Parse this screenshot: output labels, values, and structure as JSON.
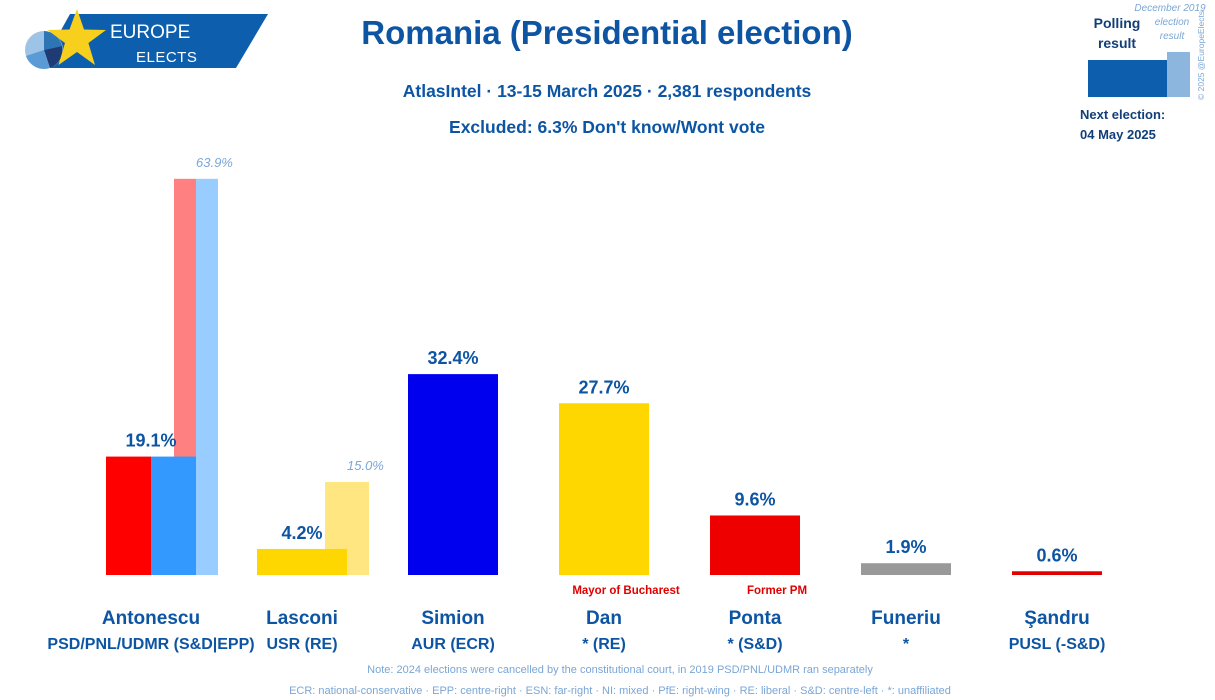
{
  "logo": {
    "line1": "EUROPE",
    "line2": "ELECTS"
  },
  "legend_extra": {
    "copyright": "© 2025 @EuropeElects",
    "next_election_label": "Next election:",
    "next_election_date": "04 May 2025"
  },
  "colors": {
    "heading": "#0d55a3",
    "navy": "#123f7a",
    "light_blue": "#7aa6d6",
    "brand_blue": "#0d5fae",
    "brand_light_blue": "#8db6de",
    "logo_star": "#f7cf1d",
    "annotation_red": "#e00000"
  },
  "chart_data": {
    "type": "bar",
    "title": "Romania (Presidential election)",
    "subtitle": "AtlasIntel · 13-15 March 2025 · 2,381 respondents",
    "subtitle2": "Excluded: 6.3% Don't know/Wont vote",
    "categories": [
      "Antonescu",
      "Lasconi",
      "Simion",
      "Dan",
      "Ponta",
      "Funeriu",
      "Şandru"
    ],
    "parties": [
      "PSD/PNL/UDMR (S&D|EPP)",
      "USR (RE)",
      "AUR (ECR)",
      "* (RE)",
      "* (S&D)",
      "*",
      "PUSL (-S&D)"
    ],
    "series": [
      {
        "legend_lines": [
          "Polling",
          "result"
        ],
        "values": [
          19.1,
          4.2,
          32.4,
          27.7,
          9.6,
          1.9,
          0.6
        ],
        "labels": [
          "19.1%",
          "4.2%",
          "32.4%",
          "27.7%",
          "9.6%",
          "1.9%",
          "0.6%"
        ]
      },
      {
        "legend_lines": [
          "December 2019",
          "election",
          "result"
        ],
        "values": [
          63.9,
          15.0,
          null,
          null,
          null,
          null,
          null
        ],
        "labels": [
          "63.9%",
          "15.0%",
          null,
          null,
          null,
          null,
          null
        ]
      }
    ],
    "bar_colors": [
      [
        "#ff0000",
        "#3399ff"
      ],
      [
        "#ffd700"
      ],
      [
        "#0000ee"
      ],
      [
        "#ffd700"
      ],
      [
        "#ee0000"
      ],
      [
        "#999999"
      ],
      [
        "#e00000"
      ]
    ],
    "previous_colors": [
      [
        "#ff8080",
        "#99ccff"
      ],
      [
        "#ffe680"
      ],
      null,
      null,
      null,
      null,
      null
    ],
    "annotations": [
      null,
      null,
      null,
      "Mayor of Bucharest",
      "Former PM",
      null,
      null
    ],
    "notes": [
      "Note: 2024 elections were cancelled by the constitutional court, in 2019 PSD/PNL/UDMR ran separately",
      "ECR: national-conservative · EPP: centre-right · ESN: far-right · NI: mixed · PfE: right-wing · RE: liberal · S&D: centre-left · *: unaffiliated"
    ]
  }
}
